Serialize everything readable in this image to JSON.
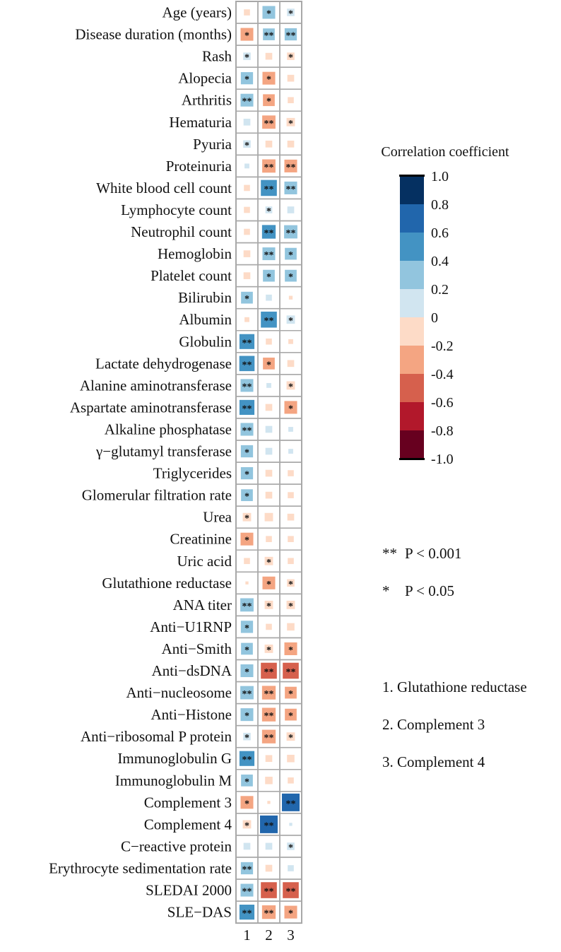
{
  "chart_data": {
    "type": "heatmap",
    "title": "",
    "rows": [
      "Age (years)",
      "Disease duration (months)",
      "Rash",
      "Alopecia",
      "Arthritis",
      "Hematuria",
      "Pyuria",
      "Proteinuria",
      "White blood cell count",
      "Lymphocyte count",
      "Neutrophil count",
      "Hemoglobin",
      "Platelet count",
      "Bilirubin",
      "Albumin",
      "Globulin",
      "Lactate dehydrogenase",
      "Alanine aminotransferase",
      "Aspartate aminotransferase",
      "Alkaline phosphatase",
      "γ−glutamyl transferase",
      "Triglycerides",
      "Glomerular filtration rate",
      "Urea",
      "Creatinine",
      "Uric acid",
      "Glutathione reductase",
      "ANA titer",
      "Anti−U1RNP",
      "Anti−Smith",
      "Anti−dsDNA",
      "Anti−nucleosome",
      "Anti−Histone",
      "Anti−ribosomal P protein",
      "Immunoglobulin G",
      "Immunoglobulin M",
      "Complement 3",
      "Complement 4",
      "C−reactive protein",
      "Erythrocyte sedimentation rate",
      "SLEDAI 2000",
      "SLE−DAS"
    ],
    "columns": [
      "1",
      "2",
      "3"
    ],
    "values": [
      [
        -0.08,
        0.35,
        0.12
      ],
      [
        -0.35,
        0.3,
        0.32
      ],
      [
        0.12,
        -0.1,
        -0.12
      ],
      [
        0.32,
        -0.35,
        -0.1
      ],
      [
        0.35,
        -0.3,
        -0.08
      ],
      [
        0.1,
        -0.38,
        -0.15
      ],
      [
        0.12,
        -0.1,
        -0.1
      ],
      [
        0.05,
        -0.38,
        -0.35
      ],
      [
        -0.08,
        0.55,
        0.35
      ],
      [
        -0.08,
        0.1,
        0.1
      ],
      [
        -0.08,
        0.4,
        0.38
      ],
      [
        -0.1,
        0.35,
        0.3
      ],
      [
        -0.1,
        0.3,
        0.3
      ],
      [
        0.3,
        0.08,
        -0.03
      ],
      [
        -0.05,
        0.55,
        0.15
      ],
      [
        0.48,
        -0.08,
        -0.05
      ],
      [
        0.5,
        -0.3,
        -0.1
      ],
      [
        0.35,
        0.05,
        -0.15
      ],
      [
        0.48,
        -0.1,
        -0.35
      ],
      [
        0.35,
        0.1,
        0.05
      ],
      [
        0.32,
        0.1,
        0.05
      ],
      [
        0.32,
        -0.1,
        -0.08
      ],
      [
        0.3,
        -0.1,
        -0.08
      ],
      [
        -0.15,
        -0.15,
        -0.1
      ],
      [
        -0.35,
        -0.08,
        -0.08
      ],
      [
        -0.08,
        -0.15,
        -0.08
      ],
      [
        -0.02,
        -0.35,
        -0.12
      ],
      [
        0.38,
        -0.15,
        -0.15
      ],
      [
        0.32,
        -0.08,
        -0.12
      ],
      [
        0.3,
        -0.15,
        -0.35
      ],
      [
        0.35,
        -0.55,
        -0.55
      ],
      [
        0.38,
        -0.4,
        -0.3
      ],
      [
        0.35,
        -0.4,
        -0.3
      ],
      [
        0.12,
        -0.4,
        -0.15
      ],
      [
        0.48,
        -0.1,
        -0.12
      ],
      [
        0.3,
        -0.12,
        -0.08
      ],
      [
        -0.35,
        -0.02,
        0.7
      ],
      [
        -0.15,
        0.7,
        0.02
      ],
      [
        0.1,
        0.1,
        0.12
      ],
      [
        0.32,
        -0.1,
        0.08
      ],
      [
        0.35,
        -0.55,
        -0.55
      ],
      [
        0.48,
        -0.4,
        -0.35
      ]
    ],
    "significance": [
      [
        "",
        "*",
        "*"
      ],
      [
        "*",
        "**",
        "**"
      ],
      [
        "*",
        "",
        "*"
      ],
      [
        "*",
        "*",
        ""
      ],
      [
        "**",
        "*",
        ""
      ],
      [
        "",
        "**",
        "*"
      ],
      [
        "*",
        "",
        ""
      ],
      [
        "",
        "**",
        "**"
      ],
      [
        "",
        "**",
        "**"
      ],
      [
        "",
        "*",
        ""
      ],
      [
        "",
        "**",
        "**"
      ],
      [
        "",
        "**",
        "*"
      ],
      [
        "",
        "*",
        "*"
      ],
      [
        "*",
        "",
        ""
      ],
      [
        "",
        "**",
        "*"
      ],
      [
        "**",
        "",
        ""
      ],
      [
        "**",
        "*",
        ""
      ],
      [
        "**",
        "",
        "*"
      ],
      [
        "**",
        "",
        "*"
      ],
      [
        "**",
        "",
        ""
      ],
      [
        "*",
        "",
        ""
      ],
      [
        "*",
        "",
        ""
      ],
      [
        "*",
        "",
        ""
      ],
      [
        "*",
        "",
        ""
      ],
      [
        "*",
        "",
        ""
      ],
      [
        "",
        "*",
        ""
      ],
      [
        "",
        "*",
        "*"
      ],
      [
        "**",
        "*",
        "*"
      ],
      [
        "*",
        "",
        ""
      ],
      [
        "*",
        "*",
        "*"
      ],
      [
        "*",
        "**",
        "**"
      ],
      [
        "**",
        "**",
        "*"
      ],
      [
        "*",
        "**",
        "*"
      ],
      [
        "*",
        "**",
        "*"
      ],
      [
        "**",
        "",
        ""
      ],
      [
        "*",
        "",
        ""
      ],
      [
        "*",
        "",
        "**"
      ],
      [
        "*",
        "**",
        ""
      ],
      [
        "",
        "",
        "*"
      ],
      [
        "**",
        "",
        ""
      ],
      [
        "**",
        "**",
        "**"
      ],
      [
        "**",
        "**",
        "*"
      ]
    ],
    "color_scale": {
      "title": "Correlation coefficient",
      "ticks": [
        "1.0",
        "0.8",
        "0.6",
        "0.4",
        "0.2",
        "0",
        "-0.2",
        "-0.4",
        "-0.6",
        "-0.8",
        "-1.0"
      ],
      "range": [
        -1.0,
        1.0
      ],
      "colors_high_to_low": [
        "#053061",
        "#2166ac",
        "#4393c3",
        "#92c5de",
        "#d1e5f0",
        "#fddbc7",
        "#f4a582",
        "#d6604d",
        "#b2182b",
        "#67001f"
      ]
    },
    "significance_legend": [
      {
        "symbol": "**",
        "label": "P < 0.001"
      },
      {
        "symbol": "*",
        "label": "P < 0.05"
      }
    ],
    "column_legend": [
      "1. Glutathione reductase",
      "2. Complement 3",
      "3. Complement 4"
    ]
  }
}
